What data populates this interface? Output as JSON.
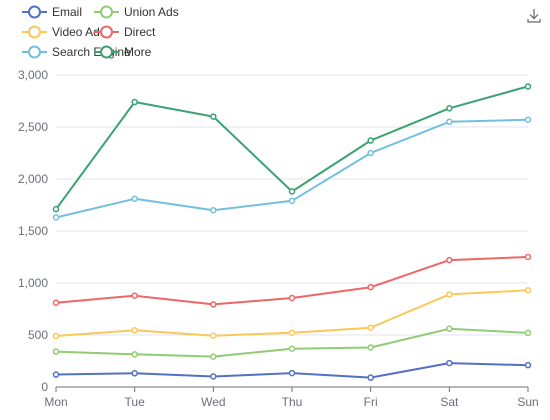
{
  "chart_data": {
    "type": "line",
    "categories": [
      "Mon",
      "Tue",
      "Wed",
      "Thu",
      "Fri",
      "Sat",
      "Sun"
    ],
    "ylim": [
      0,
      3000
    ],
    "yticks": [
      0,
      500,
      1000,
      1500,
      2000,
      2500,
      3000
    ],
    "ytick_labels": [
      "0",
      "500",
      "1,000",
      "1,500",
      "2,000",
      "2,500",
      "3,000"
    ],
    "grid": true,
    "legend_position": "top-left",
    "series": [
      {
        "name": "Email",
        "color": "#5470c6",
        "values": [
          120,
          132,
          101,
          134,
          90,
          230,
          210
        ]
      },
      {
        "name": "Union Ads",
        "color": "#91cc75",
        "values": [
          340,
          314,
          292,
          368,
          380,
          560,
          520
        ]
      },
      {
        "name": "Video Ads",
        "color": "#fac858",
        "values": [
          490,
          546,
          493,
          522,
          570,
          890,
          930
        ]
      },
      {
        "name": "Direct",
        "color": "#ee6666",
        "values": [
          810,
          878,
          794,
          856,
          960,
          1220,
          1250
        ]
      },
      {
        "name": "Search Engine",
        "color": "#73c0de",
        "values": [
          1630,
          1810,
          1700,
          1790,
          2250,
          2550,
          2570
        ]
      },
      {
        "name": "More",
        "color": "#3ba272",
        "values": [
          1710,
          2740,
          2600,
          1880,
          2370,
          2680,
          2890
        ]
      }
    ]
  },
  "toolbox": {
    "download_icon": "download-icon"
  }
}
